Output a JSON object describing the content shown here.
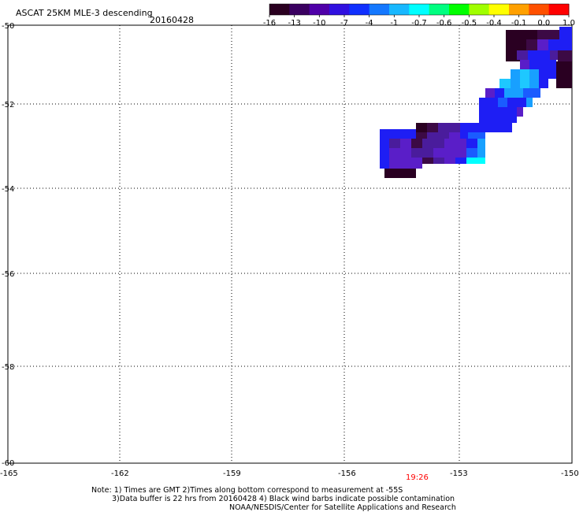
{
  "header": {
    "title": "ASCAT 25KM MLE-3 descending",
    "date": "20160428"
  },
  "colorbar": {
    "colors": [
      "#2a0020",
      "#3a0060",
      "#4f00a8",
      "#3010e0",
      "#1030ff",
      "#1478ff",
      "#18b8ff",
      "#00ffff",
      "#00ff80",
      "#00ff00",
      "#a0ff00",
      "#ffff00",
      "#ffa000",
      "#ff5000",
      "#ff0000"
    ],
    "tick_labels": [
      "-16",
      "-13",
      "-10",
      "-7",
      "-4",
      "-1",
      "-0.7",
      "-0.6",
      "-0.5",
      "-0.4",
      "-0.1",
      "0.0",
      "1.0"
    ]
  },
  "axes": {
    "lon_labels": [
      "-165",
      "-162",
      "-159",
      "-156",
      "-153",
      "-150"
    ],
    "lat_labels": [
      "-50",
      "-52",
      "-54",
      "-56",
      "-58",
      "-60"
    ],
    "time_label": "19:26",
    "time_color": "#ff0000"
  },
  "footer": {
    "line1": "Note: 1) Times are GMT 2)Times along bottom correspond to measurement at -55S",
    "line2": "3)Data buffer is 22 hrs from 20160428 4) Black wind barbs indicate possible contamination",
    "line3": "NOAA/NESDIS/Center for Satellite Applications and Research"
  },
  "swath": {
    "levels": [
      "#2a0022",
      "#3c0a45",
      "#4a1c9c",
      "#5a1ec8",
      "#1e1ef4",
      "#1a5cff",
      "#18a0ff",
      "#1ec8ff",
      "#00ffff"
    ]
  }
}
